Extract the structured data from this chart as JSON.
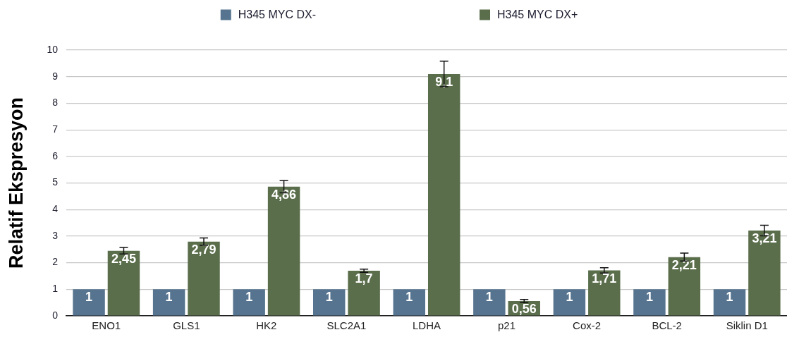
{
  "chart_data": {
    "type": "bar",
    "ylabel": "Relatif Ekspresyon",
    "categories": [
      "ENO1",
      "GLS1",
      "HK2",
      "SLC2A1",
      "LDHA",
      "p21",
      "Cox-2",
      "BCL-2",
      "Siklin D1"
    ],
    "series": [
      {
        "name": "H345 MYC DX-",
        "color": "#56748f",
        "values": [
          1,
          1,
          1,
          1,
          1,
          1,
          1,
          1,
          1
        ],
        "value_labels": [
          "1",
          "1",
          "1",
          "1",
          "1",
          "1",
          "1",
          "1",
          "1"
        ]
      },
      {
        "name": "H345 MYC DX+",
        "color": "#5a6e4b",
        "values": [
          2.45,
          2.79,
          4.86,
          1.7,
          9.1,
          0.56,
          1.71,
          2.21,
          3.21
        ],
        "value_labels": [
          "2,45",
          "2,79",
          "4,86",
          "1,7",
          "9,1",
          "0,56",
          "1,71",
          "2,21",
          "3,21"
        ],
        "errors": [
          0.12,
          0.14,
          0.23,
          0.06,
          0.48,
          0.06,
          0.1,
          0.15,
          0.2
        ]
      }
    ],
    "ylim": [
      0,
      10
    ],
    "yticks": [
      0,
      1,
      2,
      3,
      4,
      5,
      6,
      7,
      8,
      9,
      10
    ],
    "grid": "y",
    "legend": "top"
  }
}
